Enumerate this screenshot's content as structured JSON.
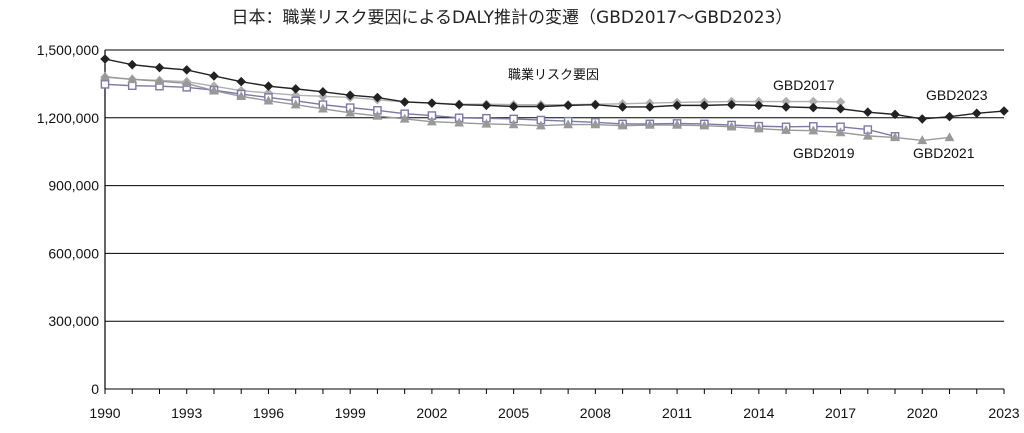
{
  "chart_data": {
    "type": "line",
    "title": "日本：職業リスク要因によるDALY推計の変遷（GBD2017～GBD2023）",
    "ylim": [
      0,
      1500000
    ],
    "y_ticks": [
      "0",
      "300,000",
      "600,000",
      "900,000",
      "1,200,000",
      "1,500,000"
    ],
    "x_ticks": [
      "1990",
      "1993",
      "1996",
      "1999",
      "2002",
      "2005",
      "2008",
      "2011",
      "2014",
      "2017",
      "2020",
      "2023"
    ],
    "xlim": [
      1990,
      2023
    ],
    "grid": "horizontal",
    "annotation": "職業リスク要因",
    "series": [
      {
        "name": "GBD2017",
        "color": "#b0b0b0",
        "marker": "diamond-gray",
        "x": [
          1990,
          1991,
          1992,
          1993,
          1994,
          1995,
          1996,
          1997,
          1998,
          1999,
          2000,
          2001,
          2002,
          2003,
          2004,
          2005,
          2006,
          2007,
          2008,
          2009,
          2010,
          2011,
          2012,
          2013,
          2014,
          2015,
          2016,
          2017
        ],
        "values": [
          1380000,
          1370000,
          1365000,
          1360000,
          1340000,
          1320000,
          1310000,
          1300000,
          1295000,
          1290000,
          1280000,
          1270000,
          1265000,
          1260000,
          1260000,
          1258000,
          1258000,
          1258000,
          1260000,
          1262000,
          1265000,
          1268000,
          1270000,
          1272000,
          1272000,
          1272000,
          1272000,
          1270000
        ]
      },
      {
        "name": "GBD2019",
        "color": "#7a7aa8",
        "marker": "square",
        "x": [
          1990,
          1991,
          1992,
          1993,
          1994,
          1995,
          1996,
          1997,
          1998,
          1999,
          2000,
          2001,
          2002,
          2003,
          2004,
          2005,
          2006,
          2007,
          2008,
          2009,
          2010,
          2011,
          2012,
          2013,
          2014,
          2015,
          2016,
          2017,
          2018,
          2019
        ],
        "values": [
          1348000,
          1342000,
          1340000,
          1335000,
          1322000,
          1305000,
          1290000,
          1275000,
          1258000,
          1245000,
          1233000,
          1218000,
          1210000,
          1200000,
          1198000,
          1195000,
          1190000,
          1185000,
          1180000,
          1173000,
          1173000,
          1175000,
          1173000,
          1168000,
          1163000,
          1160000,
          1162000,
          1160000,
          1148000,
          1118000
        ]
      },
      {
        "name": "GBD2021",
        "color": "#999999",
        "marker": "triangle",
        "x": [
          1990,
          1991,
          1992,
          1993,
          1994,
          1995,
          1996,
          1997,
          1998,
          1999,
          2000,
          2001,
          2002,
          2003,
          2004,
          2005,
          2006,
          2007,
          2008,
          2009,
          2010,
          2011,
          2012,
          2013,
          2014,
          2015,
          2016,
          2017,
          2018,
          2019,
          2020,
          2021
        ],
        "values": [
          1382000,
          1370000,
          1362000,
          1352000,
          1320000,
          1295000,
          1275000,
          1258000,
          1240000,
          1222000,
          1208000,
          1195000,
          1183000,
          1178000,
          1173000,
          1170000,
          1165000,
          1170000,
          1170000,
          1165000,
          1168000,
          1168000,
          1165000,
          1160000,
          1152000,
          1145000,
          1143000,
          1135000,
          1120000,
          1113000,
          1100000,
          1113000
        ]
      },
      {
        "name": "GBD2023",
        "color": "#222222",
        "marker": "diamond",
        "x": [
          1990,
          1991,
          1992,
          1993,
          1994,
          1995,
          1996,
          1997,
          1998,
          1999,
          2000,
          2001,
          2002,
          2003,
          2004,
          2005,
          2006,
          2007,
          2008,
          2009,
          2010,
          2011,
          2012,
          2013,
          2014,
          2015,
          2016,
          2017,
          2018,
          2019,
          2020,
          2021,
          2022,
          2023
        ],
        "values": [
          1460000,
          1435000,
          1422000,
          1412000,
          1385000,
          1360000,
          1340000,
          1328000,
          1315000,
          1300000,
          1290000,
          1270000,
          1265000,
          1258000,
          1255000,
          1250000,
          1250000,
          1255000,
          1258000,
          1248000,
          1248000,
          1255000,
          1255000,
          1258000,
          1255000,
          1248000,
          1245000,
          1240000,
          1225000,
          1215000,
          1195000,
          1205000,
          1220000,
          1230000
        ]
      }
    ]
  }
}
